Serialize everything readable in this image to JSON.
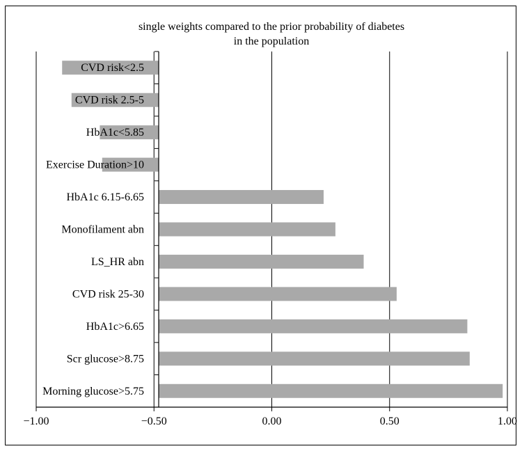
{
  "chart_data": {
    "type": "bar",
    "orientation": "horizontal",
    "title_lines": [
      "single weights compared to the prior probability of diabetes",
      "in the population"
    ],
    "categories": [
      "CVD risk<2.5",
      "CVD risk 2.5-5",
      "HbA1c<5.85",
      "Exercise Duration>10",
      "HbA1c 6.15-6.65",
      "Monofilament abn",
      "LS_HR abn",
      "CVD risk 25-30",
      "HbA1c>6.65",
      "Scr glucose>8.75",
      "Morning glucose>5.75"
    ],
    "values": [
      -0.89,
      -0.85,
      -0.73,
      -0.72,
      0.22,
      0.27,
      0.39,
      0.53,
      0.83,
      0.84,
      0.98
    ],
    "xlim": [
      -1.0,
      1.0
    ],
    "xticks": [
      -1.0,
      -0.5,
      0.0,
      0.5,
      1.0
    ],
    "xtick_labels": [
      "−1.00",
      "−0.50",
      "0.00",
      "0.50",
      "1.00"
    ],
    "category_axis_at": -0.48,
    "grid": "vertical",
    "legend": "none",
    "bar_color": "#a9a9a9",
    "axis_color": "#000000"
  }
}
